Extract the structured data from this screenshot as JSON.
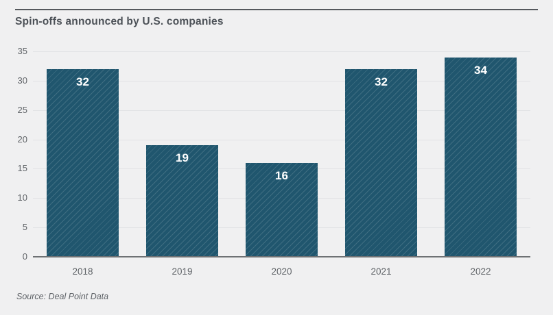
{
  "header": {
    "title": "Spin-offs announced by U.S. companies"
  },
  "footer": {
    "source": "Source: Deal Point Data"
  },
  "colors": {
    "background": "#f0f0f1",
    "bar_fill": "#20566e",
    "bar_hatch": "rgba(255,255,255,0.14)",
    "gridline": "#e1e2e4",
    "axis_line": "#6e7174",
    "top_rule": "#55585d",
    "title_text": "#4c5157",
    "tick_text": "#606468",
    "value_label_text": "#ffffff"
  },
  "chart_data": {
    "type": "bar",
    "title": "Spin-offs announced by U.S. companies",
    "categories": [
      "2018",
      "2019",
      "2020",
      "2021",
      "2022"
    ],
    "values": [
      32,
      19,
      16,
      32,
      34
    ],
    "xlabel": "",
    "ylabel": "",
    "ylim": [
      0,
      35
    ],
    "yticks": [
      0,
      5,
      10,
      15,
      20,
      25,
      30,
      35
    ],
    "grid": true,
    "bar_labels": true,
    "legend": "none",
    "source": "Source: Deal Point Data"
  }
}
